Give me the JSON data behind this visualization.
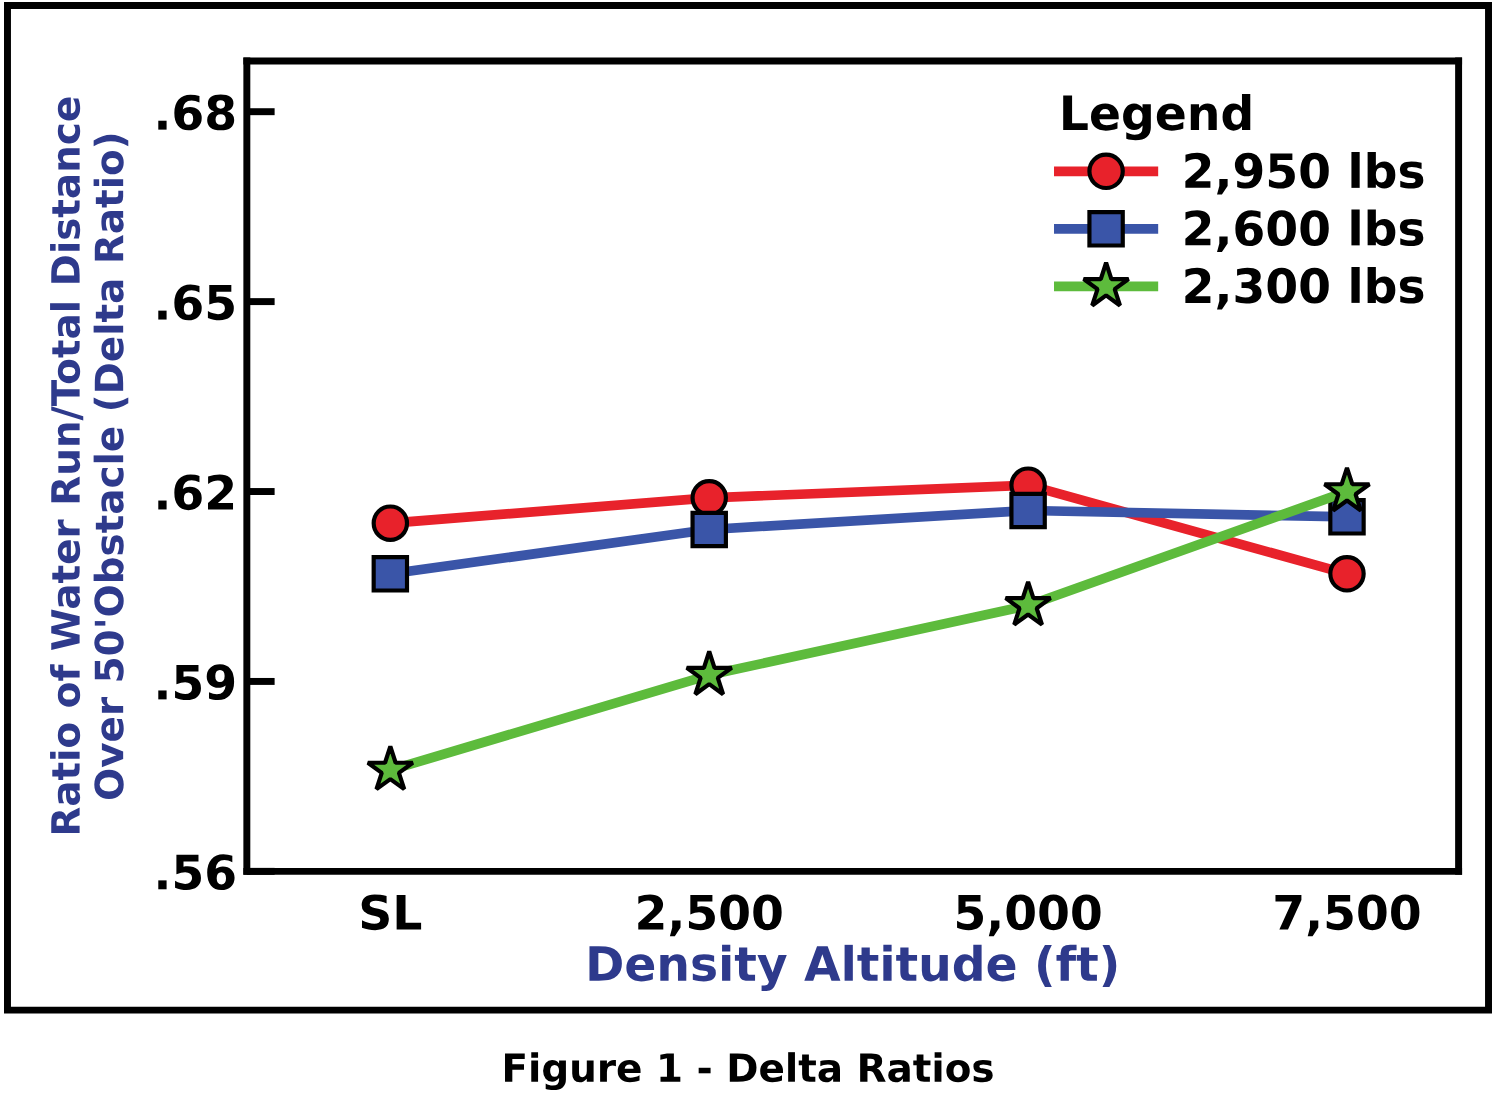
{
  "chart_data": {
    "type": "line",
    "categories": [
      "SL",
      "2,500",
      "5,000",
      "7,500"
    ],
    "xlabel": "Density Altitude (ft)",
    "ylabel": "Ratio of Water Run/Total Distance\nOver 50'Obstacle (Delta Ratio)",
    "legend_title": "Legend",
    "legend": "top right",
    "grid": false,
    "line_style": "solid",
    "ylim": [
      0.56,
      0.688
    ],
    "yticks": [
      {
        "value": 0.56,
        "label": ".56"
      },
      {
        "value": 0.59,
        "label": ".59"
      },
      {
        "value": 0.62,
        "label": ".62"
      },
      {
        "value": 0.65,
        "label": ".65"
      },
      {
        "value": 0.68,
        "label": ".68"
      }
    ],
    "series": [
      {
        "name": "2,950 lbs",
        "color": "#e8222b",
        "marker": "circle",
        "values": [
          0.615,
          0.619,
          0.621,
          0.607
        ]
      },
      {
        "name": "2,600 lbs",
        "color": "#3a55a8",
        "marker": "square",
        "values": [
          0.607,
          0.614,
          0.617,
          0.616
        ]
      },
      {
        "name": "2,300 lbs",
        "color": "#5dbb3c",
        "marker": "star",
        "values": [
          0.576,
          0.591,
          0.602,
          0.62
        ]
      }
    ],
    "annotations": [
      "Figure 1 - Delta Ratios"
    ]
  }
}
